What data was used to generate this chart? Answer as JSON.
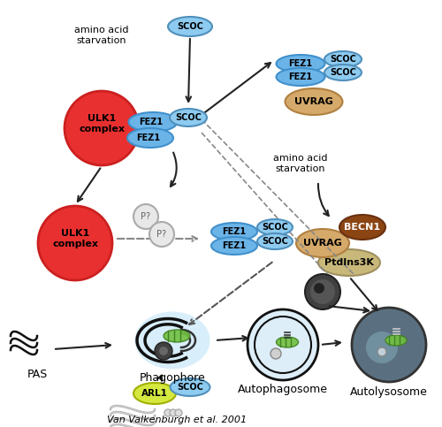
{
  "bg_color": "#ffffff",
  "title": "",
  "figsize": [
    5.0,
    4.83
  ],
  "dpi": 100,
  "colors": {
    "red_circle": "#e83030",
    "fez1_blue": "#6bb4e8",
    "scoc_blue": "#8ecbf0",
    "scoc_top": "#7dc4ef",
    "uvrag_tan": "#d4a96a",
    "becn1_brown": "#8b4513",
    "ptdins3k_tan": "#c8b87a",
    "arl1_yellow": "#d4e840",
    "arrow_dark": "#222222",
    "p_circle": "#d0d0d0",
    "dashed_line": "#888888",
    "phagophore_bg": "#c8e8f8",
    "autolysosome_bg": "#5a7080",
    "autophagosome_bg": "#e8f4fa",
    "mitochondria_green": "#70c040",
    "lysosome_dark": "#404040"
  },
  "labels": {
    "amino_acid_starvation_1": "amino acid\nstarvation",
    "amino_acid_starvation_2": "amino acid\nstarvation",
    "ulk1_complex": "ULK1\ncomplex",
    "fez1": "FEZ1",
    "scoc": "SCOC",
    "uvrag": "UVRAG",
    "becn1": "BECN1",
    "ptdins3k": "PtdIns3K",
    "arl1": "ARL1",
    "pas": "PAS",
    "phagophore": "Phagophore",
    "autophagosome": "Autophagosome",
    "autolysosome": "Autolysosome",
    "citation": "Van Valkenburgh et al. 2001",
    "p_label": "P?"
  }
}
